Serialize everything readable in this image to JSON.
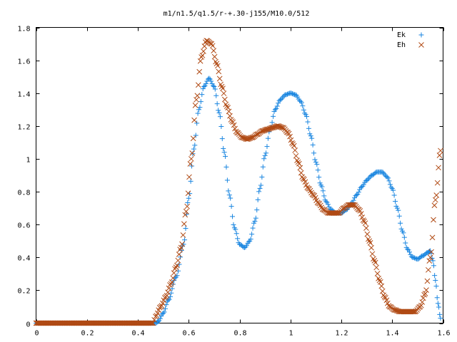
{
  "chart_data": {
    "type": "scatter",
    "title": "m1/n1.5/q1.5/r-+.30-j155/M10.0/512",
    "xlabel": "",
    "ylabel": "",
    "xlim": [
      0,
      1.6
    ],
    "ylim": [
      0,
      1.8
    ],
    "x_ticks": [
      "0",
      "0.2",
      "0.4",
      "0.6",
      "0.8",
      "1",
      "1.2",
      "1.4",
      "1.6"
    ],
    "y_ticks": [
      "0",
      "0.2",
      "0.4",
      "0.6",
      "0.8",
      "1",
      "1.2",
      "1.4",
      "1.6",
      "1.8"
    ],
    "grid": false,
    "legend_position": "top-right",
    "series": [
      {
        "name": "Ek",
        "marker": "plus",
        "color": "#1a86e0",
        "x": [
          0.0,
          0.1,
          0.2,
          0.3,
          0.4,
          0.47,
          0.48,
          0.5,
          0.52,
          0.55,
          0.58,
          0.6,
          0.62,
          0.64,
          0.66,
          0.68,
          0.7,
          0.72,
          0.74,
          0.76,
          0.78,
          0.8,
          0.82,
          0.84,
          0.86,
          0.88,
          0.9,
          0.92,
          0.94,
          0.96,
          0.98,
          1.0,
          1.02,
          1.04,
          1.06,
          1.08,
          1.1,
          1.12,
          1.14,
          1.16,
          1.18,
          1.2,
          1.22,
          1.24,
          1.26,
          1.28,
          1.3,
          1.32,
          1.34,
          1.36,
          1.38,
          1.4,
          1.42,
          1.44,
          1.46,
          1.48,
          1.5,
          1.52,
          1.54,
          1.55,
          1.56,
          1.57,
          1.58,
          1.59
        ],
        "y": [
          0.0,
          0.0,
          0.0,
          0.0,
          0.0,
          0.0,
          0.01,
          0.06,
          0.14,
          0.28,
          0.48,
          0.76,
          1.06,
          1.3,
          1.44,
          1.49,
          1.44,
          1.28,
          1.04,
          0.78,
          0.58,
          0.48,
          0.46,
          0.5,
          0.62,
          0.82,
          1.02,
          1.18,
          1.3,
          1.36,
          1.39,
          1.4,
          1.39,
          1.35,
          1.27,
          1.14,
          0.98,
          0.84,
          0.74,
          0.69,
          0.67,
          0.67,
          0.69,
          0.73,
          0.78,
          0.83,
          0.87,
          0.9,
          0.92,
          0.92,
          0.89,
          0.82,
          0.7,
          0.56,
          0.45,
          0.4,
          0.39,
          0.41,
          0.43,
          0.44,
          0.38,
          0.26,
          0.12,
          0.03
        ]
      },
      {
        "name": "Eh",
        "marker": "cross",
        "color": "#b04a14",
        "x": [
          0.0,
          0.1,
          0.2,
          0.3,
          0.4,
          0.46,
          0.47,
          0.49,
          0.51,
          0.53,
          0.55,
          0.57,
          0.59,
          0.61,
          0.63,
          0.65,
          0.67,
          0.69,
          0.71,
          0.73,
          0.75,
          0.77,
          0.79,
          0.81,
          0.83,
          0.85,
          0.87,
          0.89,
          0.91,
          0.93,
          0.95,
          0.97,
          0.99,
          1.01,
          1.03,
          1.05,
          1.07,
          1.09,
          1.11,
          1.13,
          1.15,
          1.17,
          1.19,
          1.21,
          1.23,
          1.25,
          1.27,
          1.29,
          1.31,
          1.33,
          1.35,
          1.37,
          1.39,
          1.41,
          1.43,
          1.45,
          1.47,
          1.49,
          1.51,
          1.53,
          1.55,
          1.57,
          1.59
        ],
        "y": [
          0.0,
          0.0,
          0.0,
          0.0,
          0.0,
          0.0,
          0.04,
          0.1,
          0.16,
          0.24,
          0.34,
          0.46,
          0.68,
          1.0,
          1.36,
          1.62,
          1.72,
          1.7,
          1.58,
          1.44,
          1.32,
          1.23,
          1.16,
          1.13,
          1.12,
          1.13,
          1.15,
          1.17,
          1.18,
          1.19,
          1.2,
          1.19,
          1.16,
          1.09,
          0.98,
          0.88,
          0.82,
          0.78,
          0.73,
          0.69,
          0.67,
          0.67,
          0.67,
          0.7,
          0.72,
          0.72,
          0.69,
          0.62,
          0.5,
          0.38,
          0.26,
          0.16,
          0.1,
          0.08,
          0.07,
          0.07,
          0.07,
          0.07,
          0.1,
          0.18,
          0.4,
          0.75,
          1.05
        ]
      }
    ]
  }
}
